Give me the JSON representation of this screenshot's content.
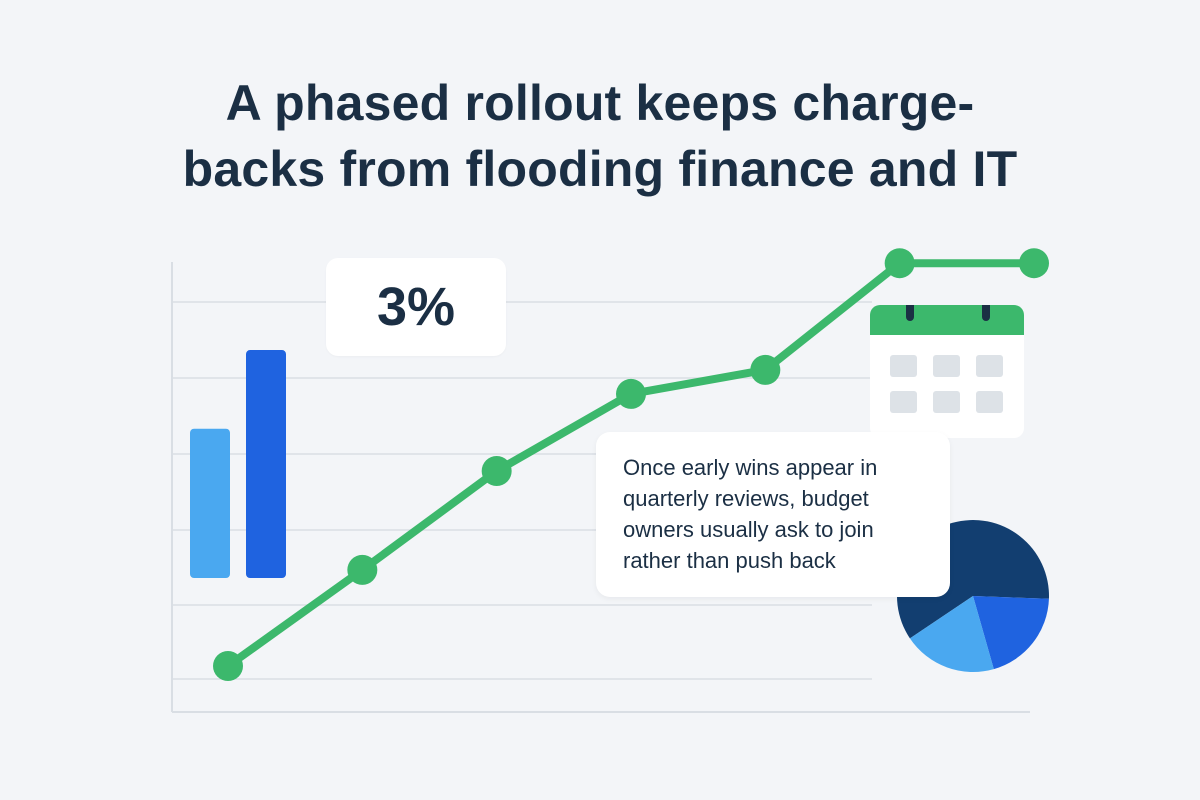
{
  "title": {
    "line1": "A phased rollout keeps charge-",
    "line2": "backs from flooding finance and IT"
  },
  "stat": {
    "value": "3%"
  },
  "note": {
    "text": "Once early wins appear in quarterly reviews, budget owners usually ask to join rather than push back"
  },
  "colors": {
    "line": "#3cb86c",
    "bar_light": "#4aa8f0",
    "bar_dark": "#1f63e0",
    "pie_dark": "#123e70",
    "pie_mid": "#1f63e0",
    "pie_light": "#4aa8f0",
    "grid": "#d9dee4",
    "text": "#1b2f44"
  },
  "icons": [
    "bar-chart-icon",
    "calendar-icon",
    "pie-chart-icon"
  ],
  "chart_data": {
    "type": "line",
    "x": [
      1,
      2,
      3,
      4,
      5,
      6,
      7
    ],
    "series": [
      {
        "values": [
          0,
          1.36,
          2.76,
          3.85,
          4.19,
          5.7,
          5.7
        ]
      }
    ],
    "ylim": [
      0,
      6
    ],
    "grid": true,
    "decorations": {
      "bars": [
        1.82,
        2.78
      ],
      "pie": [
        0.6,
        0.2,
        0.2
      ]
    }
  }
}
